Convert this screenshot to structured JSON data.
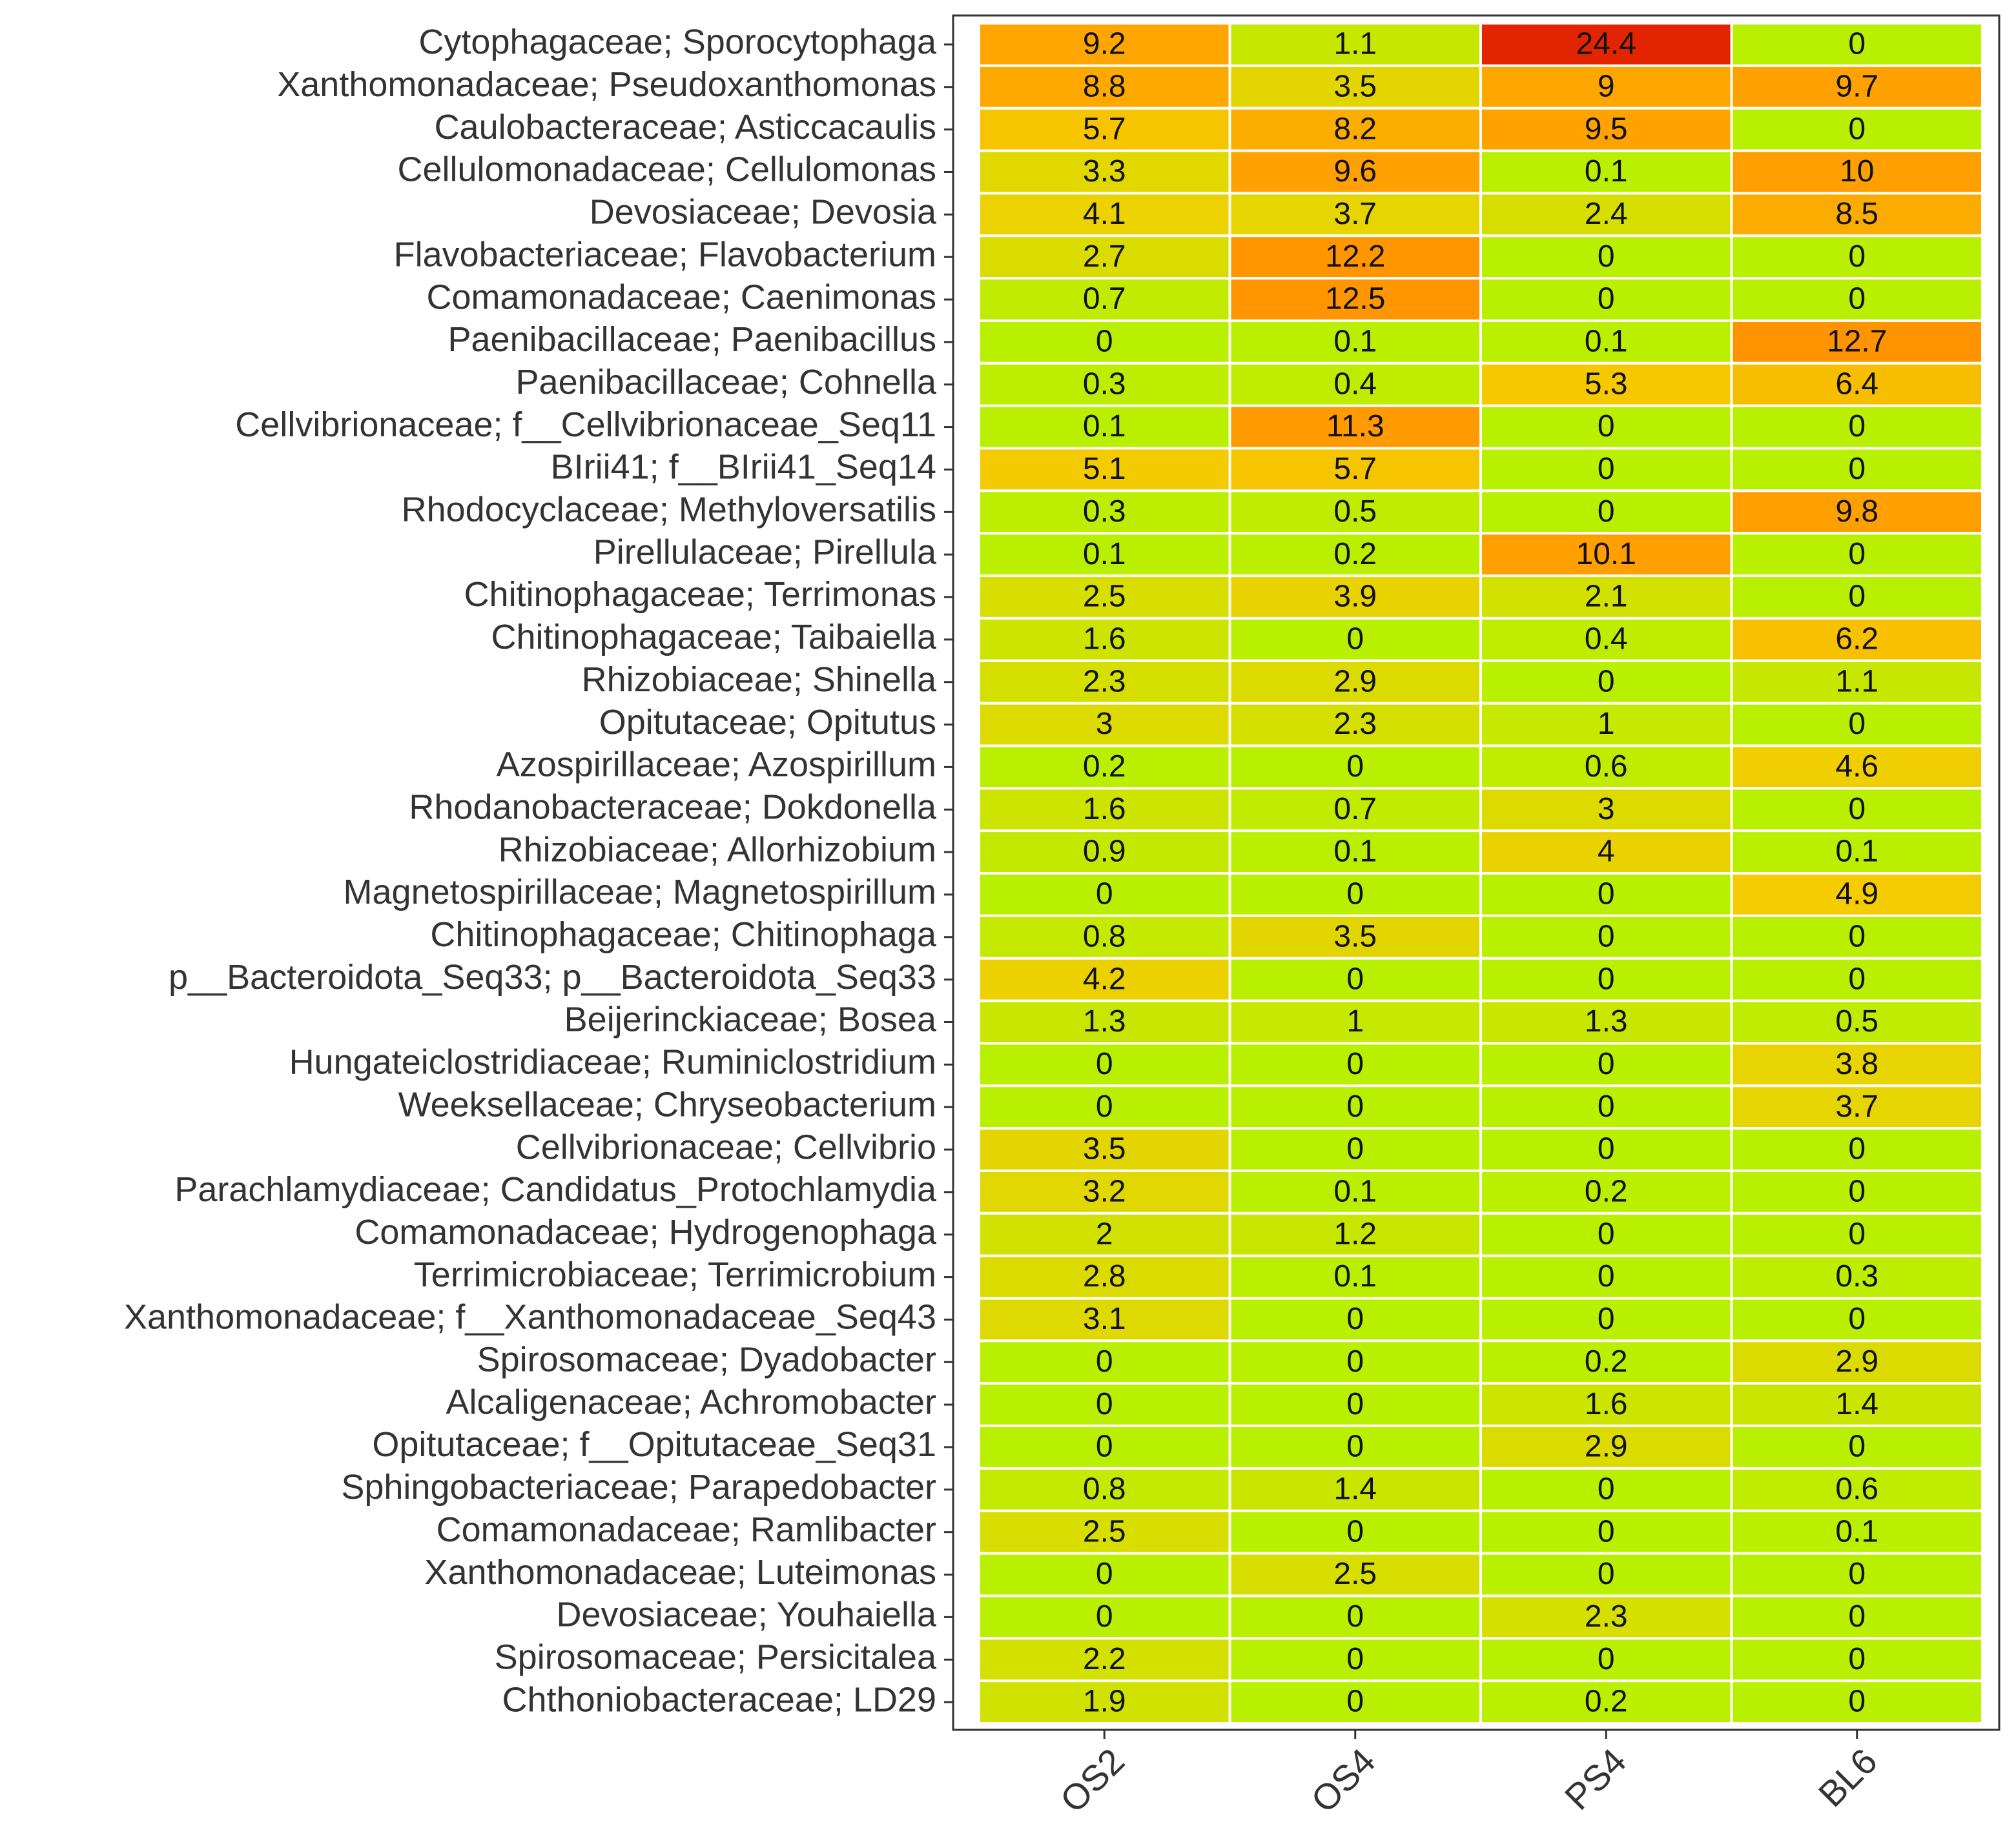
{
  "chart_data": {
    "type": "heatmap",
    "categories": [
      "OS2",
      "OS4",
      "PS4",
      "BL6"
    ],
    "rows": [
      "Cytophagaceae; Sporocytophaga",
      "Xanthomonadaceae; Pseudoxanthomonas",
      "Caulobacteraceae; Asticcacaulis",
      "Cellulomonadaceae; Cellulomonas",
      "Devosiaceae; Devosia",
      "Flavobacteriaceae; Flavobacterium",
      "Comamonadaceae; Caenimonas",
      "Paenibacillaceae; Paenibacillus",
      "Paenibacillaceae; Cohnella",
      "Cellvibrionaceae; f__Cellvibrionaceae_Seq11",
      "BIrii41; f__BIrii41_Seq14",
      "Rhodocyclaceae; Methyloversatilis",
      "Pirellulaceae; Pirellula",
      "Chitinophagaceae; Terrimonas",
      "Chitinophagaceae; Taibaiella",
      "Rhizobiaceae; Shinella",
      "Opitutaceae; Opitutus",
      "Azospirillaceae; Azospirillum",
      "Rhodanobacteraceae; Dokdonella",
      "Rhizobiaceae; Allorhizobium",
      "Magnetospirillaceae; Magnetospirillum",
      "Chitinophagaceae; Chitinophaga",
      "p__Bacteroidota_Seq33; p__Bacteroidota_Seq33",
      "Beijerinckiaceae; Bosea",
      "Hungateiclostridiaceae; Ruminiclostridium",
      "Weeksellaceae; Chryseobacterium",
      "Cellvibrionaceae; Cellvibrio",
      "Parachlamydiaceae; Candidatus_Protochlamydia",
      "Comamonadaceae; Hydrogenophaga",
      "Terrimicrobiaceae; Terrimicrobium",
      "Xanthomonadaceae; f__Xanthomonadaceae_Seq43",
      "Spirosomaceae; Dyadobacter",
      "Alcaligenaceae; Achromobacter",
      "Opitutaceae; f__Opitutaceae_Seq31",
      "Sphingobacteriaceae; Parapedobacter",
      "Comamonadaceae; Ramlibacter",
      "Xanthomonadaceae; Luteimonas",
      "Devosiaceae; Youhaiella",
      "Spirosomaceae; Persicitalea",
      "Chthoniobacteraceae; LD29"
    ],
    "values": [
      [
        9.2,
        1.1,
        24.4,
        0
      ],
      [
        8.8,
        3.5,
        9,
        9.7
      ],
      [
        5.7,
        8.2,
        9.5,
        0
      ],
      [
        3.3,
        9.6,
        0.1,
        10
      ],
      [
        4.1,
        3.7,
        2.4,
        8.5
      ],
      [
        2.7,
        12.2,
        0,
        0
      ],
      [
        0.7,
        12.5,
        0,
        0
      ],
      [
        0,
        0.1,
        0.1,
        12.7
      ],
      [
        0.3,
        0.4,
        5.3,
        6.4
      ],
      [
        0.1,
        11.3,
        0,
        0
      ],
      [
        5.1,
        5.7,
        0,
        0
      ],
      [
        0.3,
        0.5,
        0,
        9.8
      ],
      [
        0.1,
        0.2,
        10.1,
        0
      ],
      [
        2.5,
        3.9,
        2.1,
        0
      ],
      [
        1.6,
        0,
        0.4,
        6.2
      ],
      [
        2.3,
        2.9,
        0,
        1.1
      ],
      [
        3,
        2.3,
        1,
        0
      ],
      [
        0.2,
        0,
        0.6,
        4.6
      ],
      [
        1.6,
        0.7,
        3,
        0
      ],
      [
        0.9,
        0.1,
        4,
        0.1
      ],
      [
        0,
        0,
        0,
        4.9
      ],
      [
        0.8,
        3.5,
        0,
        0
      ],
      [
        4.2,
        0,
        0,
        0
      ],
      [
        1.3,
        1,
        1.3,
        0.5
      ],
      [
        0,
        0,
        0,
        3.8
      ],
      [
        0,
        0,
        0,
        3.7
      ],
      [
        3.5,
        0,
        0,
        0
      ],
      [
        3.2,
        0.1,
        0.2,
        0
      ],
      [
        2,
        1.2,
        0,
        0
      ],
      [
        2.8,
        0.1,
        0,
        0.3
      ],
      [
        3.1,
        0,
        0,
        0
      ],
      [
        0,
        0,
        0.2,
        2.9
      ],
      [
        0,
        0,
        1.6,
        1.4
      ],
      [
        0,
        0,
        2.9,
        0
      ],
      [
        0.8,
        1.4,
        0,
        0.6
      ],
      [
        2.5,
        0,
        0,
        0.1
      ],
      [
        0,
        2.5,
        0,
        0
      ],
      [
        0,
        0,
        2.3,
        0
      ],
      [
        2.2,
        0,
        0,
        0
      ],
      [
        1.9,
        0,
        0.2,
        0
      ]
    ],
    "colors": [
      "#b9f000",
      "#f4cc00",
      "#ffa000",
      "#ff8c00",
      "#f46a00",
      "#e32400"
    ]
  }
}
